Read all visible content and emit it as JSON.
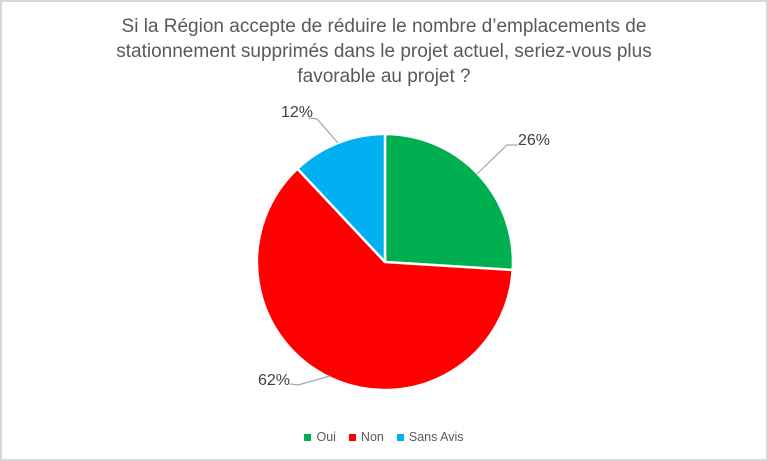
{
  "chart_data": {
    "type": "pie",
    "title": "Si la Région accepte de réduire le nombre d’emplacements de stationnement supprimés dans le projet actuel, seriez-vous plus favorable au projet ?",
    "title_lines": [
      "Si la Région accepte de réduire le nombre d’emplacements de",
      "stationnement supprimés dans le projet actuel, seriez-vous plus",
      "favorable au projet ?"
    ],
    "slices": [
      {
        "label": "Oui",
        "value": 26,
        "value_label": "26%",
        "color": "#00B050"
      },
      {
        "label": "Non",
        "value": 62,
        "value_label": "62%",
        "color": "#FF0000"
      },
      {
        "label": "Sans Avis",
        "value": 12,
        "value_label": "12%",
        "color": "#00B0F0"
      }
    ],
    "start_angle_deg": 0,
    "direction": "clockwise",
    "legend_position": "bottom",
    "style_colors": {
      "title_text": "#595959",
      "data_label_text": "#404040",
      "legend_text": "#595959",
      "leader_line": "#A6A6A6",
      "slice_border": "#FFFFFF"
    }
  }
}
